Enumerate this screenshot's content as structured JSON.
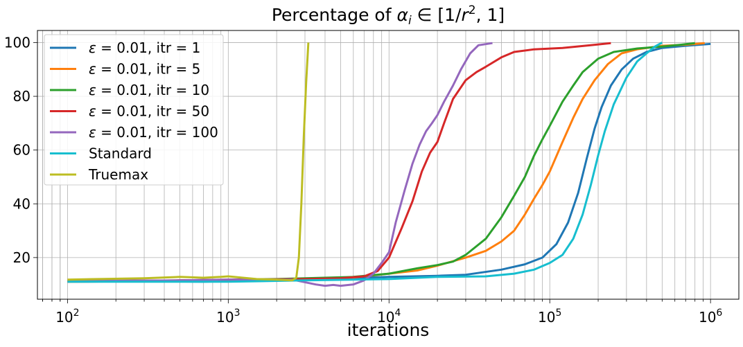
{
  "chart_data": {
    "type": "line",
    "title_prefix": "Percentage of ",
    "title_math": {
      "symbol": "α",
      "subscript": "i",
      "relation": " ∈ [1/",
      "variable": "r",
      "exponent": "2",
      "suffix": ", 1]"
    },
    "xlabel": "iterations",
    "ylabel": "",
    "xscale": "log",
    "xlim": [
      65,
      1500000
    ],
    "ylim": [
      4.5,
      104.5
    ],
    "x_ticks": [
      {
        "value": 100,
        "base": "10",
        "exp": "2"
      },
      {
        "value": 1000,
        "base": "10",
        "exp": "3"
      },
      {
        "value": 10000,
        "base": "10",
        "exp": "4"
      },
      {
        "value": 100000,
        "base": "10",
        "exp": "5"
      },
      {
        "value": 1000000,
        "base": "10",
        "exp": "6"
      }
    ],
    "y_ticks": [
      {
        "value": 20,
        "label": "20"
      },
      {
        "value": 40,
        "label": "40"
      },
      {
        "value": 60,
        "label": "60"
      },
      {
        "value": 80,
        "label": "80"
      },
      {
        "value": 100,
        "label": "100"
      }
    ],
    "grid": true,
    "legend_position": "upper-left",
    "series": [
      {
        "name": "ε = 0.01, itr = 1",
        "eps": "ε",
        "rest": " = 0.01, itr = 1",
        "color": "#1f77b4",
        "points": [
          [
            100,
            11
          ],
          [
            300,
            11.2
          ],
          [
            700,
            11
          ],
          [
            2000,
            11.6
          ],
          [
            5000,
            12.2
          ],
          [
            10000,
            12.8
          ],
          [
            20000,
            13.2
          ],
          [
            30000,
            13.6
          ],
          [
            50000,
            15.5
          ],
          [
            70000,
            17.5
          ],
          [
            90000,
            20
          ],
          [
            110000,
            25
          ],
          [
            130000,
            33
          ],
          [
            150000,
            44
          ],
          [
            170000,
            57
          ],
          [
            190000,
            68
          ],
          [
            210000,
            76
          ],
          [
            240000,
            84
          ],
          [
            280000,
            90
          ],
          [
            330000,
            94
          ],
          [
            400000,
            96.5
          ],
          [
            500000,
            98
          ],
          [
            700000,
            98.8
          ],
          [
            1000000,
            99.5
          ]
        ]
      },
      {
        "name": "ε = 0.01, itr = 5",
        "eps": "ε",
        "rest": " = 0.01, itr = 5",
        "color": "#ff7f0e",
        "points": [
          [
            100,
            11
          ],
          [
            500,
            11.2
          ],
          [
            2000,
            11.8
          ],
          [
            6000,
            12.6
          ],
          [
            10000,
            14
          ],
          [
            15000,
            15.2
          ],
          [
            20000,
            17
          ],
          [
            30000,
            20
          ],
          [
            40000,
            22.5
          ],
          [
            50000,
            26
          ],
          [
            60000,
            30
          ],
          [
            70000,
            36
          ],
          [
            80000,
            42
          ],
          [
            90000,
            47
          ],
          [
            100000,
            52
          ],
          [
            120000,
            63
          ],
          [
            140000,
            72
          ],
          [
            160000,
            79
          ],
          [
            190000,
            86
          ],
          [
            230000,
            92
          ],
          [
            280000,
            96
          ],
          [
            350000,
            97.5
          ],
          [
            500000,
            98.8
          ],
          [
            700000,
            99.2
          ],
          [
            920000,
            99.8
          ]
        ]
      },
      {
        "name": "ε = 0.01, itr = 10",
        "eps": "ε",
        "rest": " = 0.01, itr = 10",
        "color": "#2ca02c",
        "points": [
          [
            100,
            11.2
          ],
          [
            500,
            11.5
          ],
          [
            2000,
            12
          ],
          [
            6000,
            12.8
          ],
          [
            10000,
            14
          ],
          [
            15000,
            16
          ],
          [
            20000,
            17.2
          ],
          [
            25000,
            18.5
          ],
          [
            30000,
            21
          ],
          [
            40000,
            27
          ],
          [
            50000,
            35
          ],
          [
            60000,
            43
          ],
          [
            70000,
            50
          ],
          [
            80000,
            58
          ],
          [
            90000,
            64
          ],
          [
            100000,
            69
          ],
          [
            120000,
            78
          ],
          [
            140000,
            84
          ],
          [
            160000,
            89
          ],
          [
            200000,
            94
          ],
          [
            250000,
            96.5
          ],
          [
            350000,
            97.8
          ],
          [
            500000,
            98.5
          ],
          [
            650000,
            99.2
          ],
          [
            800000,
            99.8
          ]
        ]
      },
      {
        "name": "ε = 0.01, itr = 50",
        "eps": "ε",
        "rest": " = 0.01, itr = 50",
        "color": "#d62728",
        "points": [
          [
            100,
            11.2
          ],
          [
            500,
            11.5
          ],
          [
            1000,
            11.8
          ],
          [
            3000,
            12
          ],
          [
            5000,
            12.3
          ],
          [
            7000,
            13
          ],
          [
            8500,
            15
          ],
          [
            10000,
            20
          ],
          [
            12000,
            31
          ],
          [
            14000,
            41
          ],
          [
            16000,
            52
          ],
          [
            18000,
            59
          ],
          [
            20000,
            63
          ],
          [
            22000,
            70
          ],
          [
            25000,
            79
          ],
          [
            30000,
            86
          ],
          [
            35000,
            89
          ],
          [
            40000,
            91
          ],
          [
            50000,
            94.5
          ],
          [
            60000,
            96.5
          ],
          [
            80000,
            97.5
          ],
          [
            120000,
            98
          ],
          [
            180000,
            99
          ],
          [
            240000,
            99.8
          ]
        ]
      },
      {
        "name": "ε = 0.01, itr = 100",
        "eps": "ε",
        "rest": " = 0.01, itr = 100",
        "color": "#9467bd",
        "points": [
          [
            100,
            11.3
          ],
          [
            500,
            11.5
          ],
          [
            1000,
            11.8
          ],
          [
            2500,
            11.8
          ],
          [
            3500,
            10
          ],
          [
            4000,
            9.5
          ],
          [
            4500,
            9.8
          ],
          [
            5000,
            9.5
          ],
          [
            6000,
            10
          ],
          [
            7000,
            11.5
          ],
          [
            8000,
            14
          ],
          [
            9000,
            18
          ],
          [
            10000,
            22
          ],
          [
            11000,
            33
          ],
          [
            12500,
            45
          ],
          [
            14000,
            55
          ],
          [
            15500,
            62
          ],
          [
            17000,
            67
          ],
          [
            18500,
            70
          ],
          [
            20000,
            73
          ],
          [
            22000,
            78
          ],
          [
            25000,
            84
          ],
          [
            28000,
            90
          ],
          [
            32000,
            96
          ],
          [
            36000,
            99
          ],
          [
            44000,
            99.8
          ]
        ]
      },
      {
        "name": "Standard",
        "eps": "",
        "rest": "Standard",
        "color": "#17becf",
        "points": [
          [
            100,
            11
          ],
          [
            500,
            11
          ],
          [
            1000,
            11
          ],
          [
            3000,
            11.5
          ],
          [
            10000,
            12
          ],
          [
            20000,
            12.8
          ],
          [
            40000,
            13
          ],
          [
            60000,
            14
          ],
          [
            80000,
            15.5
          ],
          [
            100000,
            18
          ],
          [
            120000,
            21
          ],
          [
            140000,
            27
          ],
          [
            160000,
            36
          ],
          [
            180000,
            47
          ],
          [
            200000,
            58
          ],
          [
            220000,
            67
          ],
          [
            250000,
            77
          ],
          [
            300000,
            87
          ],
          [
            350000,
            93
          ],
          [
            400000,
            96
          ],
          [
            450000,
            98.5
          ],
          [
            500000,
            100
          ]
        ]
      },
      {
        "name": "Truemax",
        "eps": "",
        "rest": "Truemax",
        "color": "#bcbd22",
        "points": [
          [
            100,
            11.8
          ],
          [
            300,
            12.3
          ],
          [
            500,
            12.8
          ],
          [
            700,
            12.5
          ],
          [
            900,
            12.8
          ],
          [
            1000,
            13
          ],
          [
            1500,
            12
          ],
          [
            2000,
            11.8
          ],
          [
            2500,
            11.5
          ],
          [
            2650,
            12.5
          ],
          [
            2750,
            20
          ],
          [
            2850,
            40
          ],
          [
            2950,
            65
          ],
          [
            3050,
            85
          ],
          [
            3150,
            100
          ]
        ]
      }
    ]
  }
}
